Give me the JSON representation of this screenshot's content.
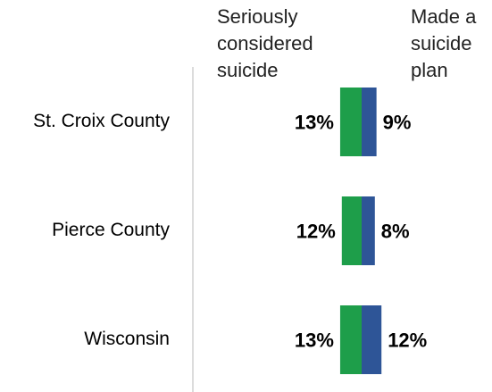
{
  "chart_data": {
    "type": "bar",
    "categories": [
      "St. Croix County",
      "Pierce County",
      "Wisconsin"
    ],
    "series": [
      {
        "name": "Seriously considered suicide",
        "color": "#1e9e4a",
        "values": [
          13,
          12,
          13
        ],
        "value_labels": [
          "13%",
          "12%",
          "13%"
        ]
      },
      {
        "name": "Made a suicide plan",
        "color": "#2e5597",
        "values": [
          9,
          8,
          12
        ],
        "value_labels": [
          "9%",
          "8%",
          "12%"
        ]
      }
    ]
  }
}
